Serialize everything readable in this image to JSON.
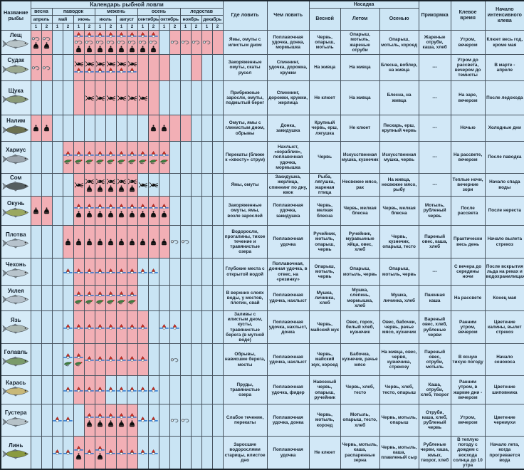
{
  "header": {
    "fish_col": "Название рыбы",
    "calendar": "Календарь рыбной ловли",
    "seasons": [
      {
        "label": "весна",
        "halves": 2
      },
      {
        "label": "паводок",
        "halves": 4
      },
      {
        "label": "межень",
        "halves": 4
      },
      {
        "label": "осень",
        "halves": 4
      },
      {
        "label": "ледостав",
        "halves": 4
      }
    ],
    "months": [
      "апрель",
      "май",
      "июнь",
      "июль",
      "август",
      "сентябрь",
      "октябрь",
      "ноябрь",
      "декабрь"
    ],
    "halves": [
      "1",
      "2"
    ],
    "where": "Где ловить",
    "tackle": "Чем ловить",
    "nasadka": "Насадка",
    "bait": [
      "Весной",
      "Летом",
      "Осенью"
    ],
    "groundbait": "Прикормка",
    "bite_time": "Клевое время",
    "bite_start": "Начало интенсивного клева"
  },
  "legend": {
    "cell_codes": {
      "p": "active-period-pink",
      "b": "inactive-blue"
    },
    "icon_codes": {
      "f": "float",
      "h": "hook",
      "b": "bell",
      "s": "spinner",
      "y": "fly-lure"
    }
  },
  "colors": {
    "active": "#f2afb5",
    "inactive": "#c9e4f4",
    "float_red": "#d22a1e",
    "water_blue": "#1d6fd1",
    "fly_green": "#3f7d3f"
  },
  "rows": [
    {
      "name": "Лещ",
      "color": "#b8c4c8",
      "cal": [
        "p:hb",
        "p:hb",
        "b:",
        "b:",
        "p:fhb",
        "p:fhb",
        "p:fhb",
        "p:fhb",
        "p:fhb",
        "p:fhb",
        "p:fhb",
        "p:fhb",
        "b:",
        "p:h",
        "p:h",
        "p:h",
        "p:h",
        "p:"
      ],
      "where": "Ямы, омуты с илистым дном",
      "tackle": "Поплавочная удочка, донка, мормышка",
      "spring": "Червь, опарыш, мотыль",
      "summer": "Опарыш, мотыль, жареные отруби",
      "autumn": "Опарыш, мотыль, короед",
      "groundbait": "Жареные отруби, каша, хлеб",
      "time": "Утром, вечером",
      "start": "Клюет весь год, кроме мая"
    },
    {
      "name": "Судак",
      "color": "#9aa890",
      "cal": [
        "p:h",
        "p:h",
        "b:",
        "b:",
        "p:sf",
        "p:sf",
        "p:sf",
        "p:sf",
        "p:sf",
        "p:sf",
        "p:",
        "p:",
        "p:",
        "b:",
        "b:",
        "p:",
        "b:",
        "b:"
      ],
      "where": "Закоряженные омуты, скаты русел",
      "tackle": "Спиннинг, удочка, дорожка, кружки",
      "spring": "На живца",
      "summer": "На живца",
      "autumn": "Блесна, воблер, на живца",
      "groundbait": "---",
      "time": "Утром до рассвета, вечером до темноты",
      "start": "В марте - апреле"
    },
    {
      "name": "Щука",
      "color": "#8a9a78",
      "cal": [
        "b:",
        "b:",
        "b:",
        "b:",
        "p:",
        "p:s",
        "p:s",
        "p:s",
        "p:s",
        "p:s",
        "p:s",
        "p:",
        "b:",
        "b:",
        "b:",
        "b:",
        "b:",
        "b:"
      ],
      "where": "Прибрежные заросли, омуты, подмытый берег",
      "tackle": "Спиннинг, дорожки, кружки, жерлица",
      "spring": "Не клюет",
      "summer": "На живца",
      "autumn": "Блесна, на живца",
      "groundbait": "---",
      "time": "На заре, вечером",
      "start": "После ледохода"
    },
    {
      "name": "Налим",
      "color": "#6b7050",
      "cal": [
        "p:b",
        "p:b",
        "b:",
        "b:",
        "b:",
        "b:",
        "b:",
        "b:",
        "b:",
        "b:",
        "b:",
        "p:b",
        "p:b",
        "p:",
        "p:",
        "b:",
        "b:",
        "b:"
      ],
      "where": "Омуты, ямы с глинистым дном, обрывы",
      "tackle": "Донка, закидушка",
      "spring": "Крупный червь, ерш, лягушка",
      "summer": "Не клюет",
      "autumn": "Пескарь, ерш, крупный червь",
      "groundbait": "---",
      "time": "Ночью",
      "start": "Холодные дни"
    },
    {
      "name": "Хариус",
      "color": "#9aa4ac",
      "cal": [
        "b:",
        "b:",
        "b:",
        "p:fy",
        "p:fy",
        "p:fy",
        "p:fy",
        "p:fy",
        "p:fy",
        "p:fy",
        "p:fy",
        "p:fy",
        "p:fy",
        "b:",
        "b:",
        "b:",
        "b:",
        "b:"
      ],
      "where": "Перекаты (ближе к «хвосту» струи)",
      "tackle": "Нахлыст, «кораблик», поплавочная удочка, мормышка",
      "spring": "Червь",
      "summer": "Искусственная мушка, кузнечик",
      "autumn": "Искусственная мушка, червь",
      "groundbait": "---",
      "time": "На рассвете, вечером",
      "start": "После паводка"
    },
    {
      "name": "Сом",
      "color": "#555e60",
      "cal": [
        "b:",
        "b:",
        "b:",
        "b:",
        "p:s",
        "p:sb",
        "p:sb",
        "p:sb",
        "p:sb",
        "p:sb",
        "b:s",
        "b:s",
        "b:",
        "b:",
        "b:",
        "b:",
        "b:",
        "b:"
      ],
      "where": "Ямы, омуты",
      "tackle": "Закидушка, жерлица, спиннинг по дну, квок",
      "spring": "Рыба, лягушка, жареная птица",
      "summer": "Несвежее мясо, рак",
      "autumn": "На живца, несвежее мясо, рыбу",
      "groundbait": "---",
      "time": "Теплые ночи, вечерние зори",
      "start": "Начало спада воды"
    },
    {
      "name": "Окунь",
      "color": "#9aa860",
      "cal": [
        "p:b",
        "p:b",
        "b:",
        "b:",
        "p:fb",
        "p:fb",
        "p:fb",
        "p:fb",
        "p:fb",
        "p:fb",
        "p:fb",
        "p:fb",
        "p:fb",
        "b:",
        "b:",
        "b:",
        "b:",
        "b:"
      ],
      "where": "Закоряженные омуты, ямы, возле зарослей",
      "tackle": "Поплавочная удочка, закидушка",
      "spring": "Червь, мелкая блесна",
      "summer": "Червь, мелкая блесна",
      "autumn": "Червь, мелкая блесна",
      "groundbait": "Мотыль, рубленый червь",
      "time": "После рассвета",
      "start": "После нереста"
    },
    {
      "name": "Плотва",
      "color": "#b6c2cc",
      "cal": [
        "b:",
        "b:",
        "b:",
        "p:b",
        "p:b",
        "p:b",
        "p:b",
        "p:b",
        "p:b",
        "p:b",
        "p:b",
        "p:b",
        "p:b",
        "b:h",
        "b:h",
        "b:",
        "b:",
        "b:"
      ],
      "where": "Водоросли, прогалины, тихое течение и травянистые озера",
      "tackle": "Поплавочная удочка",
      "spring": "Ручейник, мотыль, опарыш, червь",
      "summer": "Ручейник, муравьиные яйца, овес, хлеб",
      "autumn": "Червь, кузнечик, опарыш, тесто",
      "groundbait": "Пареный овес, каша, хлеб",
      "time": "Практически весь день",
      "start": "Начало вылета стрекоз"
    },
    {
      "name": "Чехонь",
      "color": "#b8c4cc",
      "cal": [
        "b:",
        "b:",
        "b:",
        "b:f",
        "p:f",
        "p:f",
        "p:f",
        "p:f",
        "p:f",
        "p:f",
        "b:f",
        "b:f",
        "b:",
        "b:",
        "b:",
        "b:",
        "b:",
        "b:"
      ],
      "where": "Глубокие места с открытой водой",
      "tackle": "Поплавочная, донная удочка, в отвес, на «резинку»",
      "spring": "Опарыш, мотыль, червь",
      "summer": "Опарыш, мотыль, червь",
      "autumn": "Опарыш, мотыль, червь",
      "groundbait": "---",
      "time": "С вечера до середины ночи",
      "start": "После вскрытия льда на реках и водохранилищах"
    },
    {
      "name": "Уклея",
      "color": "#b4c0ca",
      "cal": [
        "b:",
        "b:",
        "b:",
        "b:",
        "p:fy",
        "p:fy",
        "p:fy",
        "p:fy",
        "p:fy",
        "p:fy",
        "b:",
        "b:",
        "b:",
        "b:",
        "b:",
        "b:",
        "b:",
        "b:"
      ],
      "where": "В верхних слоях воды, у мостов, плотин, свай",
      "tackle": "Поплавочная удочка, нахлыст",
      "spring": "Мушка, личинка, хлеб",
      "summer": "Мушка, слепень, мормышка, хлеб",
      "autumn": "Мушка, личинка, хлеб",
      "groundbait": "Пшенная каша",
      "time": "На рассвете",
      "start": "Конец мая"
    },
    {
      "name": "Язь",
      "color": "#aab6b0",
      "cal": [
        "b:",
        "b:",
        "b:",
        "b:f",
        "p:f",
        "p:f",
        "p:f",
        "p:f",
        "p:f",
        "p:f",
        "p:f",
        "b:",
        "b:f",
        "b:f",
        "b:",
        "b:",
        "b:",
        "b:"
      ],
      "where": "Заливы с илистым дном, кусты, травянистые берега (в мутной воде)",
      "tackle": "Поплавочная удочка, нахлыст, донка",
      "spring": "Червь, майский жук",
      "summer": "Овес, горох, белый хлеб, кузнечик",
      "autumn": "Овес, бабочки, червь, рачье мясо, кузнечик",
      "groundbait": "Вареный овес, хлеб, рубленые черви",
      "time": "Ранним утром, вечером",
      "start": "Цветение калины, вылет стрекоз"
    },
    {
      "name": "Голавль",
      "color": "#7a9a6a",
      "cal": [
        "b:",
        "b:",
        "b:",
        "b:fy",
        "p:fy",
        "p:f",
        "p:f",
        "p:f",
        "p:f",
        "p:f",
        "p:f",
        "b:",
        "b:",
        "b:h",
        "b:",
        "b:",
        "b:",
        "b:"
      ],
      "where": "Обрывы, нависшие берега, мосты",
      "tackle": "Поплавочная удочка, нахлыст",
      "spring": "Червь, майский жук, короед",
      "summer": "Бабочка, кузнечик, рачье мясо",
      "autumn": "На живца, овес, червя, кузнечика, стрекозу",
      "groundbait": "Пареный овес, отруби, мотыль",
      "time": "В ясную тихую погоду",
      "start": "Начало сенокоса"
    },
    {
      "name": "Карась",
      "color": "#c8b878",
      "cal": [
        "b:",
        "b:",
        "b:",
        "b:f",
        "p:f",
        "p:f",
        "p:f",
        "b:f",
        "b:f",
        "b:f",
        "b:f",
        "b:f",
        "b:",
        "b:",
        "b:",
        "b:",
        "b:",
        "b:"
      ],
      "where": "Пруды, травянистые озера",
      "tackle": "Поплавочная удочка, фидер",
      "spring": "Навозный червь, опарыш, ручейник",
      "summer": "Червь, хлеб, тесто",
      "autumn": "Червь, хлеб, тесто, опарыш",
      "groundbait": "Каша, отруби, хлеб, творог",
      "time": "Ранним утром, в жаркие дни - вечером",
      "start": "Цветение шиповника"
    },
    {
      "name": "Густера",
      "color": "#b6c2c8",
      "cal": [
        "b:",
        "b:",
        "b:f",
        "b:f",
        "b:",
        "p:fb",
        "p:fb",
        "p:fb",
        "p:fb",
        "p:fb",
        "b:f",
        "b:f",
        "b:",
        "b:h",
        "b:h",
        "b:",
        "b:",
        "b:"
      ],
      "where": "Слабое течение, перекаты",
      "tackle": "Поплавочная удочка, донка",
      "spring": "Червь, мотыль, короед",
      "summer": "Мотыль, опарыш, тесто, хлеб",
      "autumn": "Червь, мотыль, опарыш",
      "groundbait": "Отруби, каша, хлеб, рубленый червь",
      "time": "Утром, вечером",
      "start": "Цветение черемухи"
    },
    {
      "name": "Линь",
      "color": "#8a9a40",
      "cal": [
        "b:",
        "b:",
        "b:f",
        "b:f",
        "p:fb",
        "p:f",
        "p:fb",
        "p:f",
        "p:f",
        "p:f",
        "b:f",
        "b:f",
        "b:",
        "b:",
        "b:",
        "b:",
        "b:",
        "b:"
      ],
      "where": "Заросшие водорослями старицы, илистое дно",
      "tackle": "Поплавочная удочка",
      "spring": "Не клюет",
      "summer": "Червь, мотыль, каша, распаренные зерна",
      "autumn": "Червь, мотыль, каша, плавленый сыр",
      "groundbait": "Рубленые черви, каша, жмых, творог, хлеб",
      "time": "В теплую погоду с дождем с восхода солнца до 10 утра",
      "start": "Начало лета, когда прогревается вода"
    }
  ]
}
